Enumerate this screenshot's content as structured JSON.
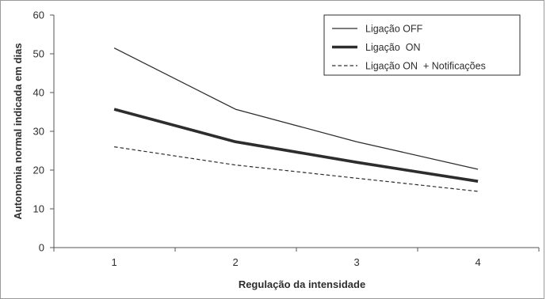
{
  "chart_data": {
    "type": "line",
    "title": "",
    "xlabel": "Regulação da intensidade",
    "ylabel": "Autonomia normal indicada em dias",
    "categories": [
      "1",
      "2",
      "3",
      "4"
    ],
    "ylim": [
      0,
      60
    ],
    "yticks": [
      0,
      10,
      20,
      30,
      40,
      50,
      60
    ],
    "grid": false,
    "legend_position": "top-right",
    "series": [
      {
        "name": "Ligação OFF",
        "values": [
          51.5,
          35.7,
          27.3,
          20.2
        ],
        "style": "thin-solid",
        "color": "#2d2d2d"
      },
      {
        "name": "Ligação  ON",
        "values": [
          35.7,
          27.3,
          22.0,
          17.1
        ],
        "style": "thick-solid",
        "color": "#2d2d2d"
      },
      {
        "name": "Ligação ON  + Notificações",
        "values": [
          26.0,
          21.3,
          17.9,
          14.5
        ],
        "style": "dashed",
        "color": "#2d2d2d"
      }
    ]
  }
}
